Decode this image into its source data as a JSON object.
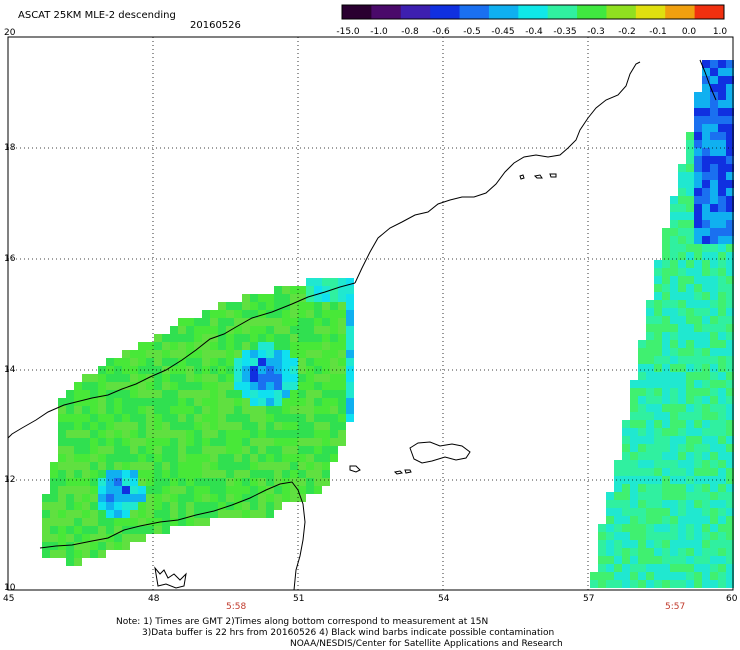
{
  "header": {
    "title": "ASCAT 25KM MLE-2 descending",
    "date": "20160526"
  },
  "colorbar": {
    "labels": [
      "-15.0",
      "-1.0",
      "-0.8",
      "-0.6",
      "-0.5",
      "-0.45",
      "-0.4",
      "-0.35",
      "-0.3",
      "-0.2",
      "-0.1",
      "0.0",
      "1.0"
    ],
    "colors": [
      "#2a0030",
      "#4a0a6a",
      "#3d1fb0",
      "#1030e0",
      "#1a70f0",
      "#10b0f0",
      "#10e8e8",
      "#30f0a0",
      "#40e840",
      "#90e020",
      "#e0e010",
      "#f0a010",
      "#f03010"
    ]
  },
  "axes": {
    "y_labels": [
      "20",
      "18",
      "16",
      "14",
      "12",
      "10"
    ],
    "x_labels": [
      "45",
      "48",
      "51",
      "54",
      "57",
      "60"
    ],
    "pass_times": [
      "5:58",
      "5:57"
    ]
  },
  "notes": {
    "line1": "Note: 1) Times are GMT 2)Times along bottom correspond to measurement at 15N",
    "line2": "3)Data buffer is 22 hrs from 20160526 4) Black wind barbs indicate possible contamination",
    "line3": "NOAA/NESDIS/Center for Satellite Applications and Research"
  }
}
